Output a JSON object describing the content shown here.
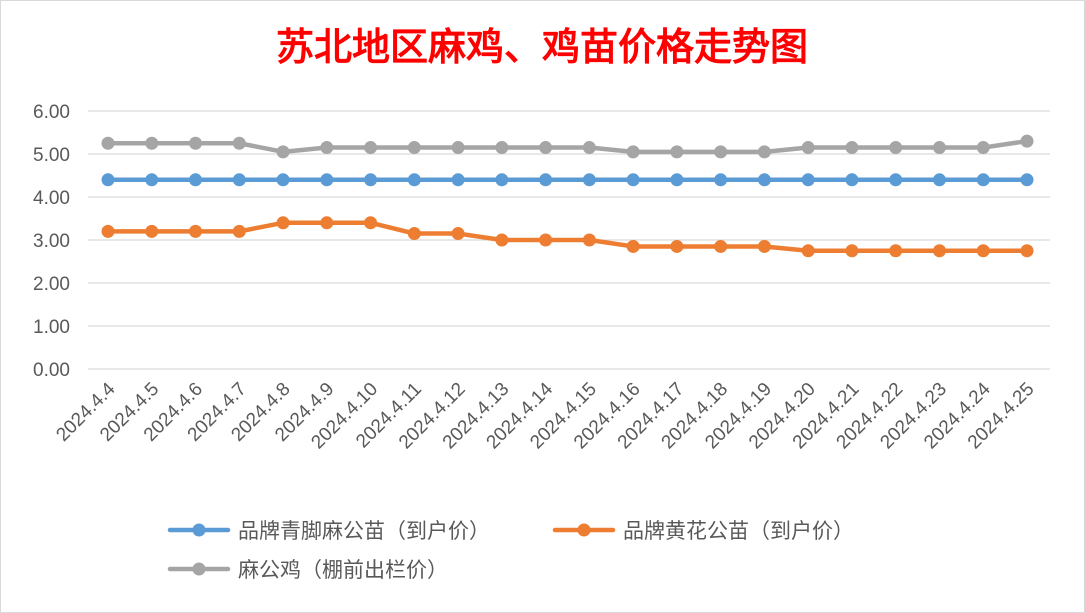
{
  "chart_data": {
    "type": "line",
    "title": "苏北地区麻鸡、鸡苗价格走势图",
    "xlabel": "",
    "ylabel": "",
    "ylim": [
      0,
      6
    ],
    "y_ticks": [
      "0.00",
      "1.00",
      "2.00",
      "3.00",
      "4.00",
      "5.00",
      "6.00"
    ],
    "grid": "horizontal",
    "legend_position": "bottom",
    "categories": [
      "2024.4.4",
      "2024.4.5",
      "2024.4.6",
      "2024.4.7",
      "2024.4.8",
      "2024.4.9",
      "2024.4.10",
      "2024.4.11",
      "2024.4.12",
      "2024.4.13",
      "2024.4.14",
      "2024.4.15",
      "2024.4.16",
      "2024.4.17",
      "2024.4.18",
      "2024.4.19",
      "2024.4.20",
      "2024.4.21",
      "2024.4.22",
      "2024.4.23",
      "2024.4.24",
      "2024.4.25"
    ],
    "series": [
      {
        "name": "品牌青脚麻公苗（到户价）",
        "color": "#5b9bd5",
        "values": [
          4.4,
          4.4,
          4.4,
          4.4,
          4.4,
          4.4,
          4.4,
          4.4,
          4.4,
          4.4,
          4.4,
          4.4,
          4.4,
          4.4,
          4.4,
          4.4,
          4.4,
          4.4,
          4.4,
          4.4,
          4.4,
          4.4
        ]
      },
      {
        "name": "品牌黄花公苗（到户价）",
        "color": "#ed7d31",
        "values": [
          3.2,
          3.2,
          3.2,
          3.2,
          3.4,
          3.4,
          3.4,
          3.15,
          3.15,
          3.0,
          3.0,
          3.0,
          2.85,
          2.85,
          2.85,
          2.85,
          2.75,
          2.75,
          2.75,
          2.75,
          2.75,
          2.75
        ]
      },
      {
        "name": "麻公鸡（棚前出栏价）",
        "color": "#a5a5a5",
        "values": [
          5.25,
          5.25,
          5.25,
          5.25,
          5.05,
          5.15,
          5.15,
          5.15,
          5.15,
          5.15,
          5.15,
          5.15,
          5.05,
          5.05,
          5.05,
          5.05,
          5.15,
          5.15,
          5.15,
          5.15,
          5.15,
          5.3
        ]
      }
    ]
  }
}
